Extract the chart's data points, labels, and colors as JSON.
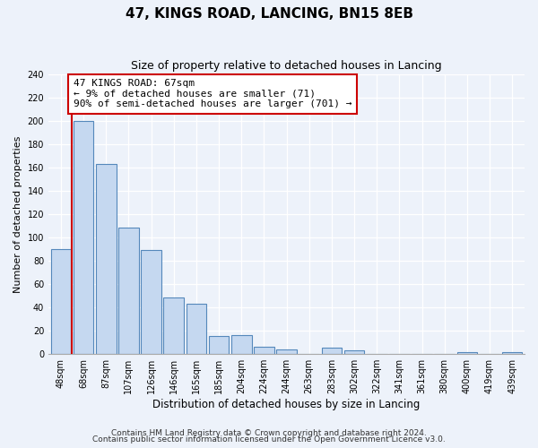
{
  "title": "47, KINGS ROAD, LANCING, BN15 8EB",
  "subtitle": "Size of property relative to detached houses in Lancing",
  "xlabel": "Distribution of detached houses by size in Lancing",
  "ylabel": "Number of detached properties",
  "bin_labels": [
    "48sqm",
    "68sqm",
    "87sqm",
    "107sqm",
    "126sqm",
    "146sqm",
    "165sqm",
    "185sqm",
    "204sqm",
    "224sqm",
    "244sqm",
    "263sqm",
    "283sqm",
    "302sqm",
    "322sqm",
    "341sqm",
    "361sqm",
    "380sqm",
    "400sqm",
    "419sqm",
    "439sqm"
  ],
  "bar_heights": [
    90,
    200,
    163,
    108,
    89,
    48,
    43,
    15,
    16,
    6,
    4,
    0,
    5,
    3,
    0,
    0,
    0,
    0,
    1,
    0,
    1
  ],
  "bar_color": "#c5d8f0",
  "bar_edge_color": "#5588bb",
  "property_line_color": "#cc0000",
  "annotation_text": "47 KINGS ROAD: 67sqm\n← 9% of detached houses are smaller (71)\n90% of semi-detached houses are larger (701) →",
  "annotation_box_color": "#ffffff",
  "annotation_box_edge_color": "#cc0000",
  "ylim": [
    0,
    240
  ],
  "yticks": [
    0,
    20,
    40,
    60,
    80,
    100,
    120,
    140,
    160,
    180,
    200,
    220,
    240
  ],
  "footer_line1": "Contains HM Land Registry data © Crown copyright and database right 2024.",
  "footer_line2": "Contains public sector information licensed under the Open Government Licence v3.0.",
  "background_color": "#edf2fa",
  "title_fontsize": 11,
  "subtitle_fontsize": 9,
  "xlabel_fontsize": 8.5,
  "ylabel_fontsize": 8,
  "tick_fontsize": 7,
  "annotation_fontsize": 8,
  "footer_fontsize": 6.5
}
